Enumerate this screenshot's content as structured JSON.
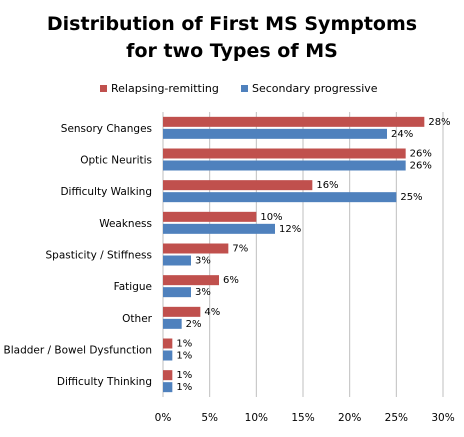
{
  "chart_data": {
    "type": "bar",
    "orientation": "horizontal",
    "title_lines": [
      "Distribution of First MS Symptoms",
      "for two Types of MS"
    ],
    "categories": [
      "Sensory Changes",
      "Optic Neuritis",
      "Difficulty Walking",
      "Weakness",
      "Spasticity / Stiffness",
      "Fatigue",
      "Other",
      "Bladder / Bowel Dysfunction",
      "Difficulty Thinking"
    ],
    "series": [
      {
        "name": "Relapsing-remitting",
        "color": "#c0504d",
        "values": [
          28,
          26,
          16,
          10,
          7,
          6,
          4,
          1,
          1
        ]
      },
      {
        "name": "Secondary progressive",
        "color": "#4f81bd",
        "values": [
          24,
          26,
          25,
          12,
          3,
          3,
          2,
          1,
          1
        ]
      }
    ],
    "xlim": [
      0,
      30
    ],
    "xticks": [
      0,
      5,
      10,
      15,
      20,
      25,
      30
    ],
    "tick_suffix": "%",
    "data_label_suffix": "%",
    "grid": "vertical",
    "legend_position": "top"
  }
}
